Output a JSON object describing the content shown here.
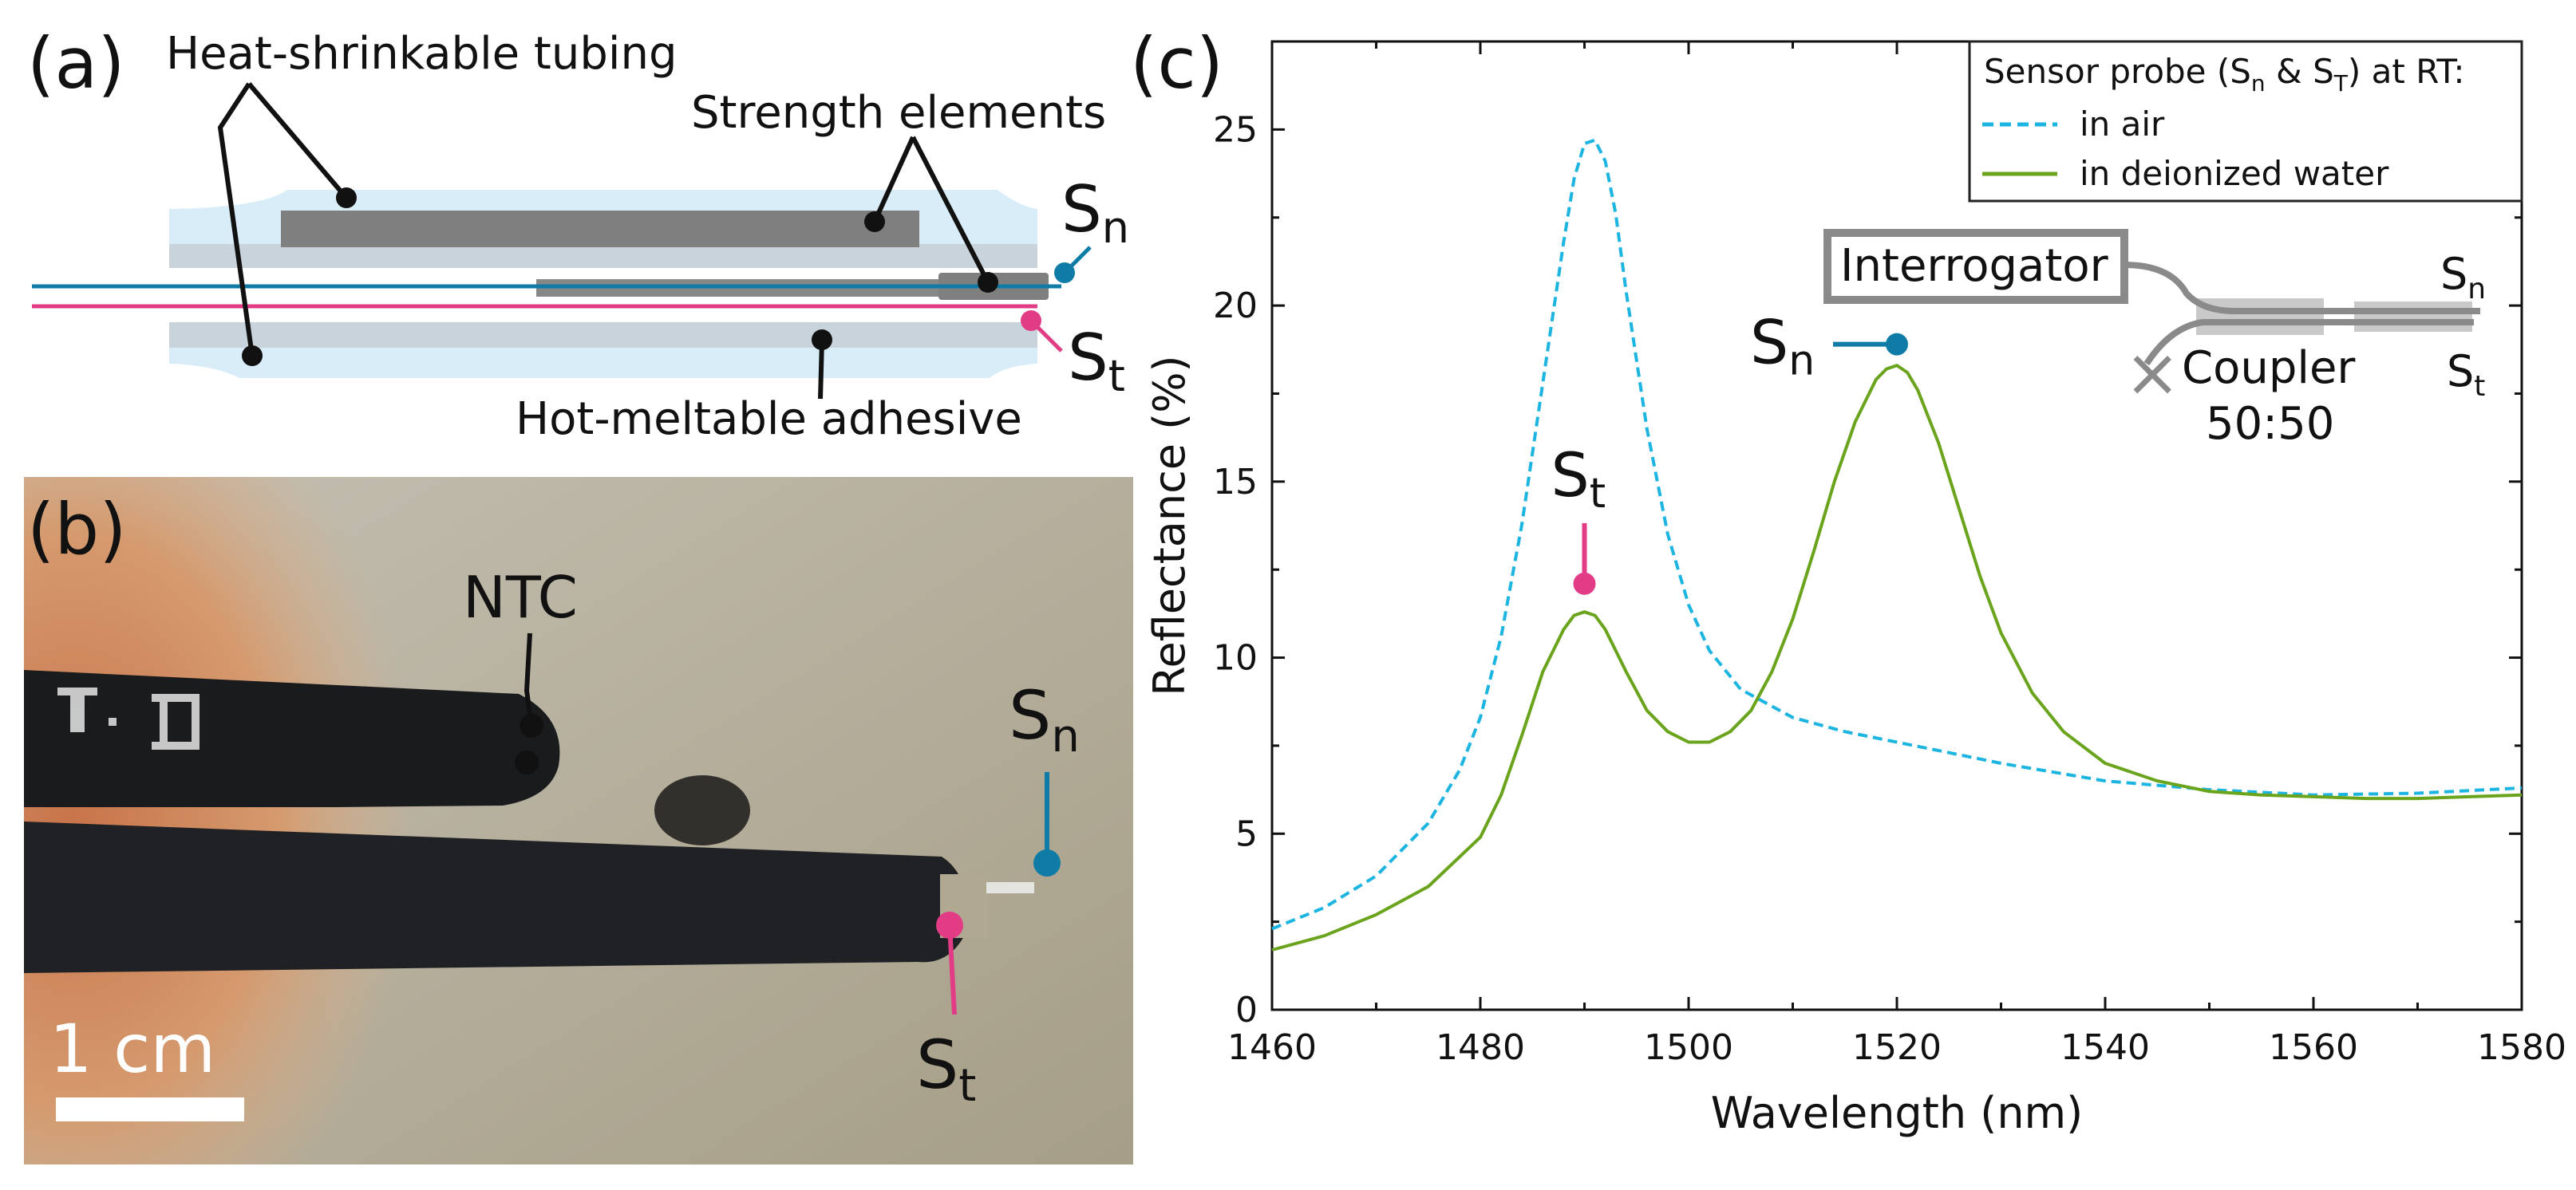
{
  "panels": {
    "a": {
      "letter": "(a)",
      "labels": {
        "tubing": "Heat-shrinkable tubing",
        "strength": "Strength elements",
        "adhesive": "Hot-meltable adhesive",
        "sn_main": "S",
        "sn_sub": "n",
        "st_main": "S",
        "st_sub": "t"
      }
    },
    "b": {
      "letter": "(b)",
      "labels": {
        "ntc": "NTC",
        "sn_main": "S",
        "sn_sub": "n",
        "st_main": "S",
        "st_sub": "t",
        "scale": "1 cm"
      }
    },
    "c": {
      "letter": "(c)",
      "legend": {
        "title_pre": "Sensor probe (S",
        "title_n": "n",
        "title_mid": " & S",
        "title_T": "T",
        "title_post": ") at RT:"
      },
      "inset": {
        "interrogator": "Interrogator",
        "coupler": "Coupler",
        "ratio": "50:50",
        "sn_main": "S",
        "sn_sub": "n",
        "st_main": "S",
        "st_sub": "t"
      },
      "markers": {
        "sn_main": "S",
        "sn_sub": "n",
        "st_main": "S",
        "st_sub": "t"
      }
    }
  },
  "colors": {
    "air": "#1cb4e0",
    "water": "#6aa31c",
    "sn": "#0f7ca8",
    "st": "#e23c86",
    "gray": "#7a7a7a"
  },
  "chart_data": {
    "type": "line",
    "xlabel": "Wavelength (nm)",
    "ylabel": "Reflectance (%)",
    "xlim": [
      1460,
      1580
    ],
    "ylim": [
      0,
      27.5
    ],
    "xticks": [
      1460,
      1480,
      1500,
      1520,
      1540,
      1560,
      1580
    ],
    "yticks": [
      0,
      5,
      10,
      15,
      20,
      25
    ],
    "series": [
      {
        "name": "in air",
        "style": "dashed",
        "x": [
          1460,
          1465,
          1470,
          1475,
          1478,
          1480,
          1482,
          1484,
          1486,
          1488,
          1489,
          1490,
          1491,
          1492,
          1493,
          1494,
          1496,
          1498,
          1500,
          1502,
          1505,
          1510,
          1515,
          1520,
          1525,
          1530,
          1540,
          1550,
          1560,
          1570,
          1580
        ],
        "y": [
          2.3,
          2.9,
          3.8,
          5.3,
          6.8,
          8.3,
          10.6,
          13.8,
          17.8,
          21.8,
          23.6,
          24.6,
          24.7,
          24.1,
          22.6,
          20.4,
          16.5,
          13.5,
          11.5,
          10.2,
          9.1,
          8.3,
          7.9,
          7.6,
          7.3,
          7.0,
          6.5,
          6.25,
          6.1,
          6.15,
          6.3
        ]
      },
      {
        "name": "in deionized water",
        "style": "solid",
        "x": [
          1460,
          1465,
          1470,
          1475,
          1480,
          1482,
          1484,
          1486,
          1488,
          1489,
          1490,
          1491,
          1492,
          1494,
          1496,
          1498,
          1500,
          1502,
          1504,
          1506,
          1508,
          1510,
          1512,
          1514,
          1516,
          1518,
          1519,
          1520,
          1521,
          1522,
          1524,
          1526,
          1528,
          1530,
          1533,
          1536,
          1540,
          1545,
          1550,
          1555,
          1560,
          1565,
          1570,
          1575,
          1580
        ],
        "y": [
          1.7,
          2.1,
          2.7,
          3.5,
          4.9,
          6.1,
          7.8,
          9.6,
          10.8,
          11.2,
          11.3,
          11.2,
          10.8,
          9.6,
          8.5,
          7.9,
          7.6,
          7.6,
          7.9,
          8.5,
          9.6,
          11.1,
          13.0,
          15.0,
          16.7,
          17.9,
          18.2,
          18.3,
          18.1,
          17.6,
          16.1,
          14.2,
          12.3,
          10.7,
          9.0,
          7.9,
          7.0,
          6.5,
          6.2,
          6.1,
          6.05,
          6.0,
          6.0,
          6.05,
          6.1
        ]
      }
    ],
    "annotations": [
      {
        "label": "S_t",
        "x": 1490,
        "y": 12.1
      },
      {
        "label": "S_n",
        "x": 1520,
        "y": 18.9
      }
    ],
    "legend_position": "top-right"
  }
}
